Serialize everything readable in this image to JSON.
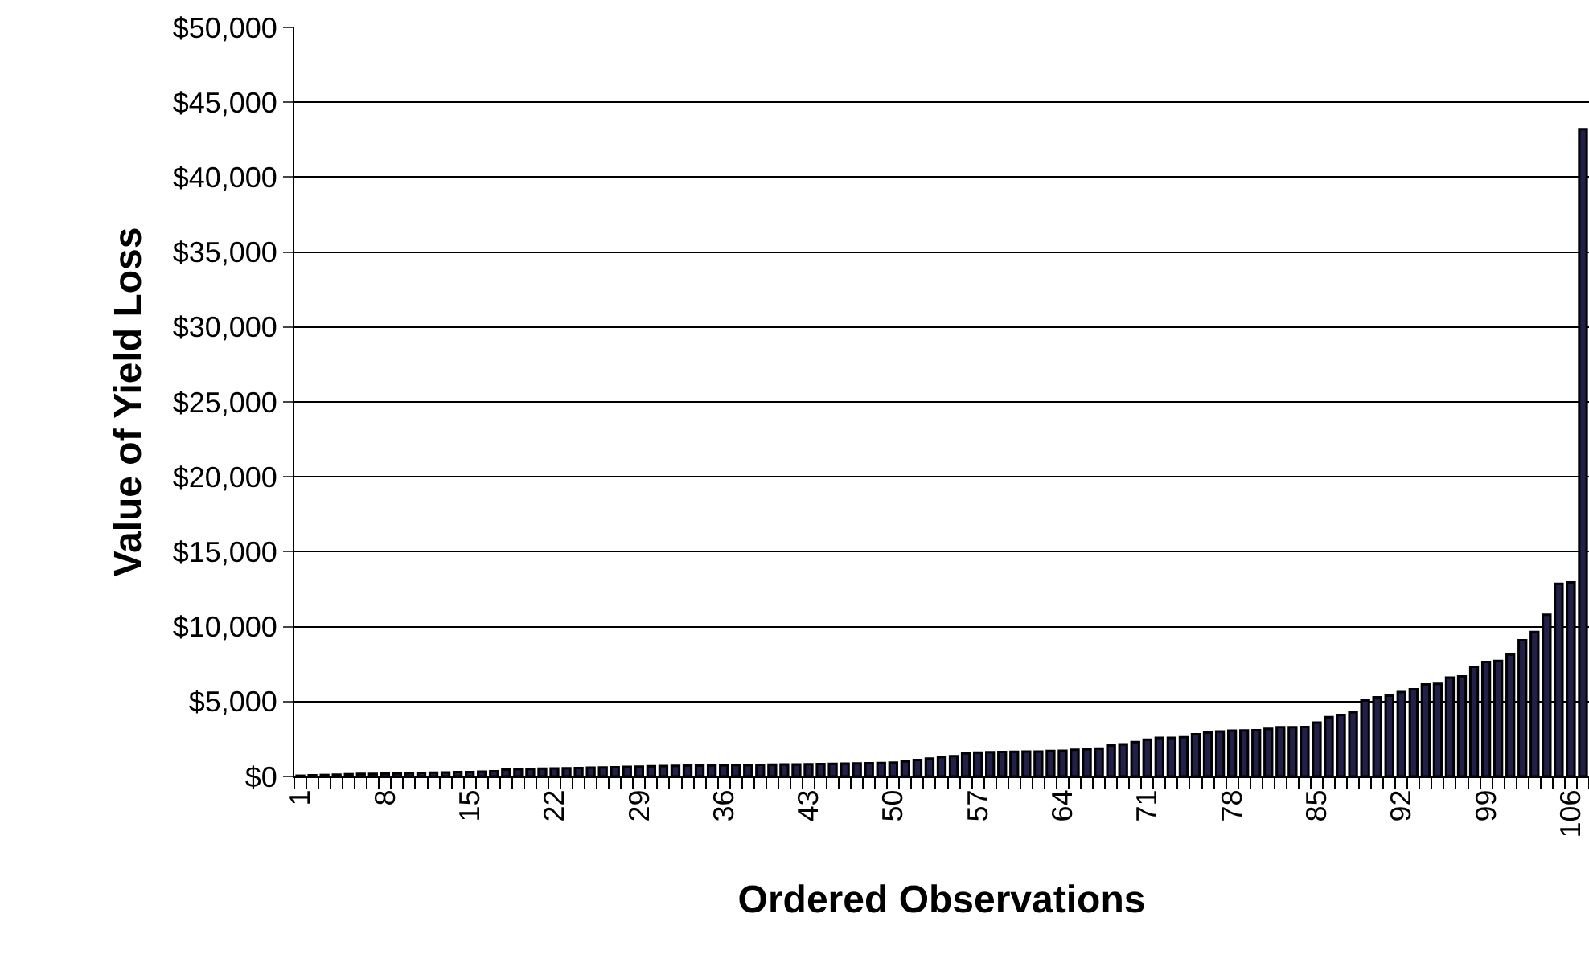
{
  "chart_data": {
    "type": "bar",
    "xlabel": "Ordered Observations",
    "ylabel": "Value of Yield Loss",
    "categories": [
      "1",
      null,
      null,
      null,
      null,
      null,
      null,
      "8",
      null,
      null,
      null,
      null,
      null,
      null,
      "15",
      null,
      null,
      null,
      null,
      null,
      null,
      "22",
      null,
      null,
      null,
      null,
      null,
      null,
      "29",
      null,
      null,
      null,
      null,
      null,
      null,
      "36",
      null,
      null,
      null,
      null,
      null,
      null,
      "43",
      null,
      null,
      null,
      null,
      null,
      null,
      "50",
      null,
      null,
      null,
      null,
      null,
      null,
      "57",
      null,
      null,
      null,
      null,
      null,
      null,
      "64",
      null,
      null,
      null,
      null,
      null,
      null,
      "71",
      null,
      null,
      null,
      null,
      null,
      null,
      "78",
      null,
      null,
      null,
      null,
      null,
      null,
      "85",
      null,
      null,
      null,
      null,
      null,
      null,
      "92",
      null,
      null,
      null,
      null,
      null,
      null,
      "99",
      null,
      null,
      null,
      null,
      null,
      null,
      "106",
      null
    ],
    "values": [
      50,
      80,
      100,
      120,
      150,
      170,
      180,
      200,
      210,
      230,
      240,
      250,
      270,
      290,
      300,
      320,
      350,
      450,
      480,
      500,
      520,
      540,
      550,
      570,
      590,
      600,
      620,
      640,
      660,
      680,
      700,
      710,
      720,
      730,
      740,
      750,
      760,
      770,
      780,
      790,
      800,
      810,
      820,
      830,
      850,
      860,
      870,
      890,
      900,
      920,
      1000,
      1100,
      1200,
      1300,
      1360,
      1540,
      1600,
      1620,
      1630,
      1650,
      1660,
      1670,
      1700,
      1710,
      1790,
      1820,
      1860,
      2070,
      2140,
      2290,
      2460,
      2570,
      2580,
      2610,
      2820,
      2930,
      3000,
      3060,
      3070,
      3080,
      3180,
      3280,
      3290,
      3300,
      3600,
      3960,
      4100,
      4290,
      5070,
      5290,
      5390,
      5640,
      5820,
      6140,
      6180,
      6600,
      6680,
      7320,
      7640,
      7710,
      8140,
      9100,
      9640,
      10800,
      12860,
      12960,
      43200
    ],
    "color": "#202048",
    "ylim": [
      0,
      50000
    ],
    "yticks": [
      {
        "value": 0,
        "label": "$0"
      },
      {
        "value": 5000,
        "label": "$5,000"
      },
      {
        "value": 10000,
        "label": "$10,000"
      },
      {
        "value": 15000,
        "label": "$15,000"
      },
      {
        "value": 20000,
        "label": "$20,000"
      },
      {
        "value": 25000,
        "label": "$25,000"
      },
      {
        "value": 30000,
        "label": "$30,000"
      },
      {
        "value": 35000,
        "label": "$35,000"
      },
      {
        "value": 40000,
        "label": "$40,000"
      },
      {
        "value": 45000,
        "label": "$45,000"
      },
      {
        "value": 50000,
        "label": "$50,000"
      }
    ],
    "grid": "y",
    "legend": false
  }
}
